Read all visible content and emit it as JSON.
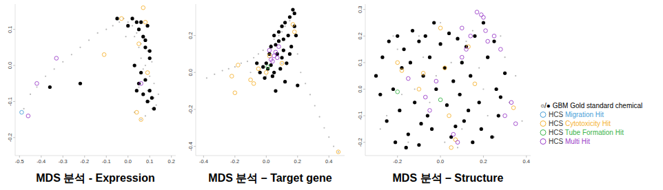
{
  "chart_data": [
    {
      "type": "scatter",
      "title": "MDS 분석 - Expression",
      "xlim": [
        -0.52,
        0.22
      ],
      "ylim": [
        -0.25,
        0.17
      ],
      "xticks": [
        -0.5,
        -0.4,
        -0.3,
        -0.2,
        -0.1,
        {
          "value": 0,
          "label": "0.0"
        },
        0.1,
        0.2
      ],
      "yticks": [
        -0.2,
        -0.1,
        {
          "value": 0,
          "label": "0.0"
        },
        0.1
      ],
      "series": [
        {
          "color": "#b8b8b8",
          "marker": "dot",
          "x": [
            -0.48,
            -0.45,
            -0.42,
            -0.38,
            -0.34,
            -0.3,
            -0.26,
            -0.22,
            -0.18,
            -0.14,
            -0.1,
            -0.07,
            -0.04,
            -0.02,
            0.0,
            0.02,
            0.03,
            0.05,
            0.06,
            0.07,
            0.08,
            0.09,
            0.1,
            0.11,
            0.12,
            0.13,
            0.04,
            0.06,
            0.08,
            0.1,
            0.05,
            0.07,
            0.09,
            0.11,
            0.03,
            0.06,
            0.08,
            0.12,
            0.14,
            -0.01
          ],
          "values": [
            -0.12,
            -0.08,
            -0.06,
            -0.03,
            -0.01,
            0.01,
            0.03,
            0.05,
            0.07,
            0.09,
            0.1,
            0.11,
            0.12,
            0.13,
            0.12,
            0.11,
            0.08,
            0.05,
            0.02,
            -0.01,
            -0.04,
            -0.07,
            -0.1,
            -0.12,
            -0.09,
            -0.11,
            0.09,
            0.06,
            0.0,
            -0.03,
            -0.06,
            -0.08,
            0.04,
            0.01,
            -0.13,
            -0.15,
            -0.14,
            -0.05,
            -0.08,
            0.08
          ]
        },
        {
          "name": "○/● GBM Gold standard chemical",
          "color": "#000000",
          "marker": "filled-circle",
          "x": [
            -0.36,
            -0.22,
            -0.05,
            0.0,
            0.02,
            0.04,
            0.05,
            0.06,
            0.07,
            0.08,
            0.09,
            0.1,
            0.03,
            0.06,
            0.08,
            0.1,
            0.12,
            0.05,
            0.07,
            0.09,
            0.11,
            0.04,
            0.08,
            0.1
          ],
          "values": [
            -0.06,
            -0.05,
            0.13,
            0.11,
            0.13,
            0.12,
            0.1,
            0.12,
            0.08,
            0.07,
            0.11,
            0.04,
            0.0,
            -0.02,
            -0.04,
            -0.07,
            -0.12,
            -0.05,
            -0.08,
            -0.1,
            -0.09,
            -0.07,
            0.05,
            0.02
          ]
        },
        {
          "name": "HCS Migration Hit",
          "color": "#4a9fd8",
          "marker": "open-circle",
          "x": [
            -0.49
          ],
          "values": [
            -0.13
          ]
        },
        {
          "name": "HCS Cytotoxicity Hit",
          "color": "#f5b335",
          "marker": "open-circle",
          "x": [
            0.07,
            -0.03,
            -0.11,
            0.04,
            0.06,
            0.09,
            0.05,
            0.08
          ],
          "values": [
            0.16,
            0.13,
            0.03,
            -0.13,
            -0.15,
            -0.02,
            0.06,
            0.12
          ]
        },
        {
          "name": "HCS Tube Formation Hit",
          "color": "#3cb44b",
          "marker": "open-circle",
          "x": [],
          "values": []
        },
        {
          "name": "HCS Multi Hit",
          "color": "#9b40c8",
          "marker": "open-circle",
          "x": [
            -0.46,
            -0.42,
            -0.33,
            0.06
          ],
          "values": [
            -0.14,
            -0.05,
            0.02,
            -0.05
          ]
        }
      ]
    },
    {
      "type": "scatter",
      "title": "MDS 분석 – Target gene",
      "xlim": [
        -0.45,
        0.5
      ],
      "ylim": [
        -0.45,
        0.37
      ],
      "xticks": [
        -0.4,
        -0.2,
        {
          "value": 0,
          "label": "0.0"
        },
        0.2,
        0.4
      ],
      "yticks": [
        -0.4,
        -0.2,
        {
          "value": 0,
          "label": "0.0"
        },
        0.2
      ],
      "series": [
        {
          "color": "#b8b8b8",
          "marker": "dot",
          "x": [
            -0.38,
            -0.33,
            -0.28,
            -0.24,
            -0.2,
            -0.16,
            -0.12,
            -0.08,
            -0.05,
            -0.02,
            0.0,
            0.03,
            0.05,
            0.08,
            0.1,
            0.12,
            0.15,
            0.18,
            0.2,
            0.22,
            0.25,
            0.28,
            0.31,
            0.34,
            0.37,
            0.4,
            0.43,
            0.46,
            0.0,
            0.05,
            -0.1,
            0.1
          ],
          "values": [
            -0.03,
            -0.01,
            0.01,
            0.02,
            0.03,
            0.05,
            0.06,
            0.08,
            0.1,
            0.12,
            0.05,
            0.15,
            0.18,
            0.2,
            0.22,
            0.25,
            0.28,
            0.2,
            0.1,
            0.0,
            -0.06,
            -0.12,
            -0.18,
            -0.24,
            -0.3,
            -0.35,
            -0.4,
            -0.43,
            -0.02,
            0.0,
            0.0,
            0.05
          ]
        },
        {
          "name": "○/● GBM Gold standard chemical",
          "color": "#000000",
          "marker": "filled-circle",
          "x": [
            0.17,
            0.18,
            0.15,
            0.12,
            0.1,
            0.08,
            0.14,
            0.19,
            0.05,
            0.06,
            0.08,
            0.11,
            0.02,
            0.0,
            0.03,
            0.05,
            -0.02,
            -0.04,
            -0.06,
            0.1,
            0.13,
            0.15,
            0.16,
            0.07,
            0.09,
            0.04,
            0.01,
            -0.01,
            0.12,
            0.2,
            0.06,
            0.03,
            0.18,
            0.11
          ],
          "values": [
            0.34,
            0.32,
            0.3,
            0.27,
            0.25,
            0.22,
            0.2,
            0.2,
            0.2,
            0.15,
            0.17,
            0.12,
            0.1,
            0.05,
            0.04,
            0.0,
            0.03,
            0.0,
            0.05,
            0.08,
            0.05,
            0.1,
            0.14,
            0.1,
            0.02,
            -0.02,
            0.02,
            -0.03,
            -0.05,
            -0.07,
            -0.1,
            0.14,
            0.25,
            0.18
          ]
        },
        {
          "name": "HCS Migration Hit",
          "color": "#4a9fd8",
          "marker": "open-circle",
          "x": [],
          "values": []
        },
        {
          "name": "HCS Cytotoxicity Hit",
          "color": "#f5b335",
          "marker": "open-circle",
          "x": [
            -0.22,
            -0.18,
            -0.2,
            -0.1,
            -0.05,
            0.17,
            0.18,
            0.02,
            0.0,
            0.46,
            -0.08,
            0.1
          ],
          "values": [
            -0.02,
            0.04,
            -0.11,
            -0.04,
            0.02,
            0.26,
            0.22,
            0.09,
            0.0,
            -0.43,
            -0.06,
            0.05
          ]
        },
        {
          "name": "HCS Tube Formation Hit",
          "color": "#3cb44b",
          "marker": "open-circle",
          "x": [
            0.01
          ],
          "values": [
            0.03
          ]
        },
        {
          "name": "HCS Multi Hit",
          "color": "#9b40c8",
          "marker": "open-circle",
          "x": [
            0.03,
            0.05,
            0.06,
            0.04,
            0.02,
            0.08,
            0.07
          ],
          "values": [
            0.07,
            0.09,
            0.11,
            0.06,
            0.12,
            0.14,
            0.08
          ]
        }
      ]
    },
    {
      "type": "scatter",
      "title": "MDS 분석 – Structure",
      "legend": "right",
      "xlim": [
        -0.35,
        0.42
      ],
      "ylim": [
        -0.25,
        0.32
      ],
      "xticks": [
        -0.2,
        {
          "value": 0,
          "label": "0.0"
        },
        0.2,
        0.4
      ],
      "yticks": [
        -0.2,
        -0.1,
        {
          "value": 0,
          "label": "0.0"
        },
        0.1,
        0.2,
        0.3
      ],
      "series": [
        {
          "color": "#b8b8b8",
          "marker": "dot",
          "x": [
            -0.3,
            -0.25,
            -0.2,
            -0.15,
            -0.1,
            -0.05,
            0.0,
            0.05,
            0.1,
            0.15,
            0.2,
            0.25,
            0.3,
            0.35,
            -0.28,
            -0.18,
            -0.08,
            0.02,
            0.12,
            0.22,
            0.32,
            -0.22,
            -0.12,
            0.08,
            0.18,
            0.28,
            -0.02,
            0.38
          ],
          "values": [
            0.05,
            -0.1,
            0.15,
            -0.2,
            0.2,
            -0.05,
            0.25,
            0.1,
            -0.15,
            0.22,
            0.0,
            -0.18,
            0.12,
            0.05,
            -0.15,
            -0.02,
            0.12,
            -0.2,
            0.18,
            -0.1,
            -0.05,
            0.2,
            0.0,
            -0.22,
            0.08,
            0.2,
            0.05,
            -0.12
          ]
        },
        {
          "name": "○/● GBM Gold standard chemical",
          "color": "#000000",
          "marker": "filled-circle",
          "x": [
            -0.3,
            -0.27,
            -0.24,
            -0.2,
            -0.17,
            -0.13,
            -0.1,
            -0.07,
            -0.03,
            0.0,
            0.04,
            0.08,
            0.12,
            0.16,
            0.2,
            0.25,
            0.3,
            -0.28,
            -0.22,
            -0.18,
            -0.14,
            -0.08,
            -0.05,
            0.02,
            0.06,
            0.1,
            0.14,
            0.22,
            0.28,
            -0.25,
            -0.19,
            -0.12,
            -0.06,
            -0.02,
            0.03,
            0.09,
            0.13,
            0.18,
            0.27,
            -0.21,
            -0.15,
            -0.1,
            -0.04,
            0.05,
            0.11,
            0.15,
            0.19,
            0.24,
            -0.16,
            -0.09,
            0.07,
            0.26
          ],
          "values": [
            0.05,
            0.12,
            0.18,
            0.2,
            0.15,
            0.22,
            0.18,
            0.2,
            0.25,
            0.17,
            0.21,
            0.19,
            0.16,
            0.2,
            0.25,
            0.18,
            0.06,
            -0.02,
            0.0,
            0.08,
            0.1,
            0.05,
            0.12,
            0.08,
            0.03,
            0.1,
            0.05,
            0.12,
            -0.03,
            -0.12,
            -0.08,
            -0.05,
            -0.1,
            0.0,
            -0.06,
            -0.02,
            -0.08,
            -0.05,
            -0.1,
            -0.2,
            -0.17,
            -0.21,
            -0.15,
            -0.18,
            -0.12,
            -0.2,
            -0.15,
            -0.18,
            -0.22,
            -0.13,
            -0.14,
            0.0
          ]
        },
        {
          "name": "HCS Migration Hit",
          "color": "#4a9fd8",
          "marker": "open-circle",
          "x": [],
          "values": []
        },
        {
          "name": "HCS Cytotoxicity Hit",
          "color": "#f5b335",
          "marker": "open-circle",
          "x": [
            -0.2,
            -0.18,
            0.0,
            0.02,
            0.05,
            -0.08,
            0.13,
            0.34,
            0.07,
            -0.1,
            0.04,
            0.16
          ],
          "values": [
            0.1,
            0.07,
            0.23,
            0.08,
            -0.22,
            0.06,
            0.16,
            -0.07,
            -0.19,
            0.0,
            -0.1,
            0.02
          ]
        },
        {
          "name": "HCS Tube Formation Hit",
          "color": "#3cb44b",
          "marker": "open-circle",
          "x": [
            -0.2,
            0.0
          ],
          "values": [
            -0.01,
            -0.04
          ]
        },
        {
          "name": "HCS Multi Hit",
          "color": "#9b40c8",
          "marker": "open-circle",
          "x": [
            0.17,
            0.19,
            0.2,
            0.21,
            0.22,
            0.25,
            0.12,
            0.14,
            0.1,
            -0.07,
            -0.05,
            0.06,
            0.08,
            0.3,
            0.33,
            0.35,
            -0.15,
            0.1,
            -0.02,
            0.28
          ],
          "values": [
            0.29,
            0.28,
            0.27,
            0.22,
            0.18,
            0.2,
            0.15,
            0.2,
            0.23,
            -0.03,
            -0.08,
            -0.17,
            -0.2,
            -0.1,
            -0.05,
            -0.13,
            0.04,
            0.12,
            0.03,
            0.15
          ]
        }
      ]
    }
  ]
}
